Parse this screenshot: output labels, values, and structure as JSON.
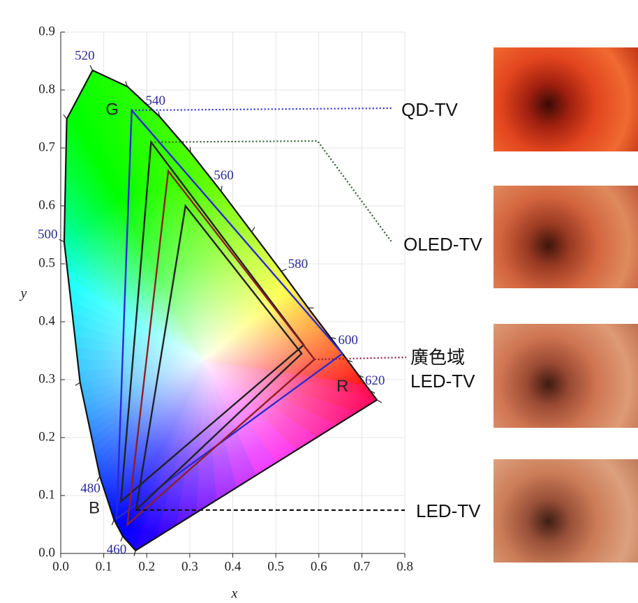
{
  "chart_data": {
    "type": "chromaticity",
    "xlabel": "x",
    "ylabel": "y",
    "xlim": [
      0,
      0.8
    ],
    "ylim": [
      0,
      0.9
    ],
    "xticks": [
      {
        "value": 0,
        "label": "0.0"
      },
      0.1,
      0.2,
      0.3,
      0.4,
      0.5,
      0.6,
      0.7,
      0.8
    ],
    "yticks": [
      {
        "value": 0,
        "label": "0.0"
      },
      0.1,
      0.2,
      0.3,
      0.4,
      0.5,
      0.6,
      0.7,
      0.8,
      0.9
    ],
    "grid": true,
    "locus": {
      "x": [
        0.174,
        0.144,
        0.124,
        0.091,
        0.045,
        0.008,
        0.014,
        0.074,
        0.155,
        0.23,
        0.302,
        0.373,
        0.444,
        0.513,
        0.575,
        0.627,
        0.666,
        0.692,
        0.719,
        0.735
      ],
      "y": [
        0.005,
        0.03,
        0.058,
        0.133,
        0.295,
        0.538,
        0.75,
        0.834,
        0.806,
        0.754,
        0.692,
        0.625,
        0.555,
        0.487,
        0.424,
        0.373,
        0.334,
        0.308,
        0.281,
        0.265
      ],
      "labels": [
        null,
        460,
        null,
        480,
        null,
        500,
        null,
        520,
        null,
        540,
        null,
        560,
        null,
        580,
        null,
        600,
        null,
        620,
        null,
        null
      ]
    },
    "annotations": [
      "R",
      "G",
      "B"
    ],
    "series": [
      {
        "name": "QD-TV",
        "color": "#2a2ad0",
        "x": [
          0.655,
          0.165,
          0.13
        ],
        "y": [
          0.345,
          0.765,
          0.06
        ]
      },
      {
        "name": "OLED-TV",
        "color": "#222222",
        "x": [
          0.565,
          0.21,
          0.14
        ],
        "y": [
          0.36,
          0.71,
          0.09
        ]
      },
      {
        "name": "廣色域 LED-TV",
        "color": "#8b2020",
        "x": [
          0.59,
          0.25,
          0.155
        ],
        "y": [
          0.335,
          0.66,
          0.05
        ]
      },
      {
        "name": "LED-TV",
        "color": "#222222",
        "x": [
          0.56,
          0.29,
          0.175
        ],
        "y": [
          0.345,
          0.6,
          0.075
        ]
      }
    ]
  }
}
